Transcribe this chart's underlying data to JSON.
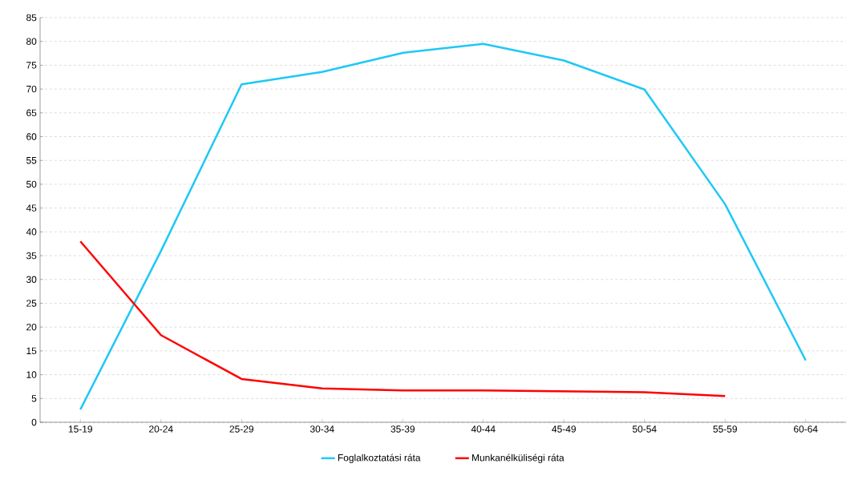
{
  "chart_data": {
    "type": "line",
    "categories": [
      "15-19",
      "20-24",
      "25-29",
      "30-34",
      "35-39",
      "40-44",
      "45-49",
      "50-54",
      "55-59",
      "60-64"
    ],
    "series": [
      {
        "name": "Foglalkoztatási ráta",
        "color": "#1ec8f5",
        "values": [
          2.7,
          36,
          71,
          73.6,
          77.6,
          79.5,
          76,
          69.9,
          45.8,
          13
        ]
      },
      {
        "name": "Munkanélküliségi ráta",
        "color": "#ff0000",
        "values": [
          38,
          18.3,
          9.1,
          7.1,
          6.7,
          6.7,
          6.5,
          6.3,
          5.5,
          null
        ]
      }
    ],
    "ylim": [
      0,
      85
    ],
    "yticks": [
      0,
      5,
      10,
      15,
      20,
      25,
      30,
      35,
      40,
      45,
      50,
      55,
      60,
      65,
      70,
      75,
      80,
      85
    ],
    "grid": "y",
    "legend": "bottom",
    "marker": "none",
    "line_style": "solid"
  }
}
